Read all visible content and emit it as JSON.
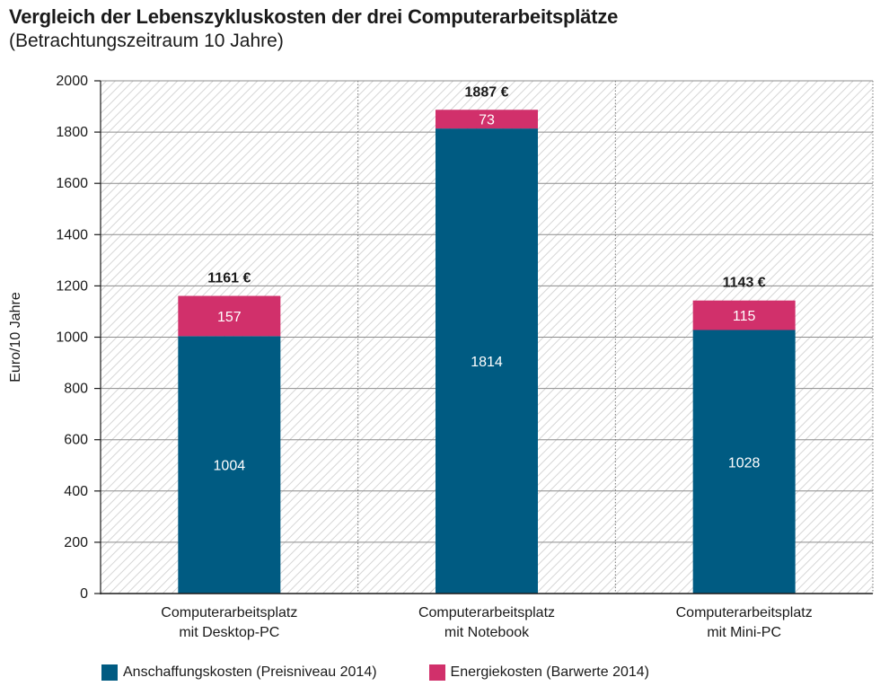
{
  "title": "Vergleich der Lebenszykluskosten der drei Computerarbeitsplätze",
  "subtitle": "(Betrachtungszeitraum 10 Jahre)",
  "chart_data": {
    "type": "bar",
    "stacked": true,
    "ylabel": "Euro/10 Jahre",
    "ylim": [
      0,
      2000
    ],
    "yticks": [
      0,
      200,
      400,
      600,
      800,
      1000,
      1200,
      1400,
      1600,
      1800,
      2000
    ],
    "grid": true,
    "legend_position": "bottom",
    "categories": [
      [
        "Computerarbeitsplatz",
        "mit Desktop-PC"
      ],
      [
        "Computerarbeitsplatz",
        "mit Notebook"
      ],
      [
        "Computerarbeitsplatz",
        "mit Mini-PC"
      ]
    ],
    "series": [
      {
        "name": "Anschaffungskosten (Preisniveau 2014)",
        "color": "#005b82",
        "values": [
          1004,
          1814,
          1028
        ]
      },
      {
        "name": "Energiekosten (Barwerte 2014)",
        "color": "#d1306b",
        "values": [
          157,
          73,
          115
        ]
      }
    ],
    "totals": [
      "1161 €",
      "1887 €",
      "1143 €"
    ]
  }
}
